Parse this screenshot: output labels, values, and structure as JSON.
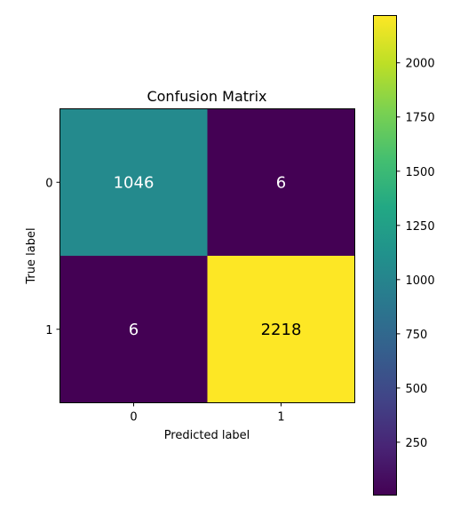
{
  "chart_data": {
    "type": "heatmap",
    "title": "Confusion Matrix",
    "xlabel": "Predicted label",
    "ylabel": "True label",
    "x_categories": [
      "0",
      "1"
    ],
    "y_categories": [
      "0",
      "1"
    ],
    "matrix": [
      [
        1046,
        6
      ],
      [
        6,
        2218
      ]
    ],
    "colormap": "viridis",
    "colorbar": {
      "vmin": 6,
      "vmax": 2218,
      "ticks": [
        250,
        500,
        750,
        1000,
        1250,
        1500,
        1750,
        2000
      ],
      "tick_labels": [
        "250",
        "500",
        "750",
        "1000",
        "1250",
        "1500",
        "1750",
        "2000"
      ]
    },
    "text_colors": {
      "dark_cell": "#ffffff",
      "light_cell": "#000000"
    }
  }
}
